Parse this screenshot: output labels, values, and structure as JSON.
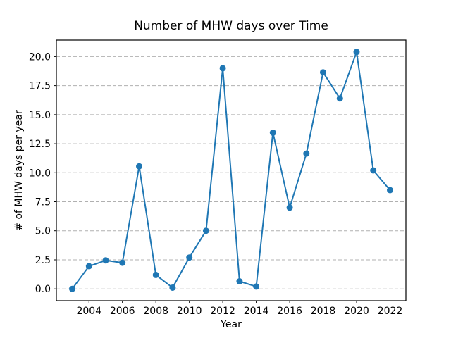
{
  "chart_data": {
    "type": "line",
    "title": "Number of MHW days over Time",
    "xlabel": "Year",
    "ylabel": "# of MHW days per year",
    "x": [
      2003,
      2004,
      2005,
      2006,
      2007,
      2008,
      2009,
      2010,
      2011,
      2012,
      2013,
      2014,
      2015,
      2016,
      2017,
      2018,
      2019,
      2020,
      2021,
      2022
    ],
    "y": [
      0.0,
      1.95,
      2.45,
      2.25,
      10.55,
      1.2,
      0.1,
      2.7,
      5.0,
      19.0,
      0.65,
      0.2,
      13.45,
      7.0,
      11.65,
      18.65,
      16.4,
      20.4,
      10.2,
      8.5
    ],
    "xticks": [
      2004,
      2006,
      2008,
      2010,
      2012,
      2014,
      2016,
      2018,
      2020,
      2022
    ],
    "yticks": [
      0,
      2.5,
      5,
      7.5,
      10,
      12.5,
      15,
      17.5,
      20
    ],
    "ytick_labels": [
      "0.0",
      "2.5",
      "5.0",
      "7.5",
      "10.0",
      "12.5",
      "15.0",
      "17.5",
      "20.0"
    ],
    "xlim": [
      2002.05,
      2022.95
    ],
    "ylim": [
      -1.02,
      21.42
    ],
    "grid": "horizontal dashed gridlines at y ticks",
    "legend": "none",
    "line_color": "#1f77b4",
    "grid_color": "#b0b0b0",
    "axis_color": "#000000",
    "marker": "circle",
    "background": "#ffffff"
  }
}
